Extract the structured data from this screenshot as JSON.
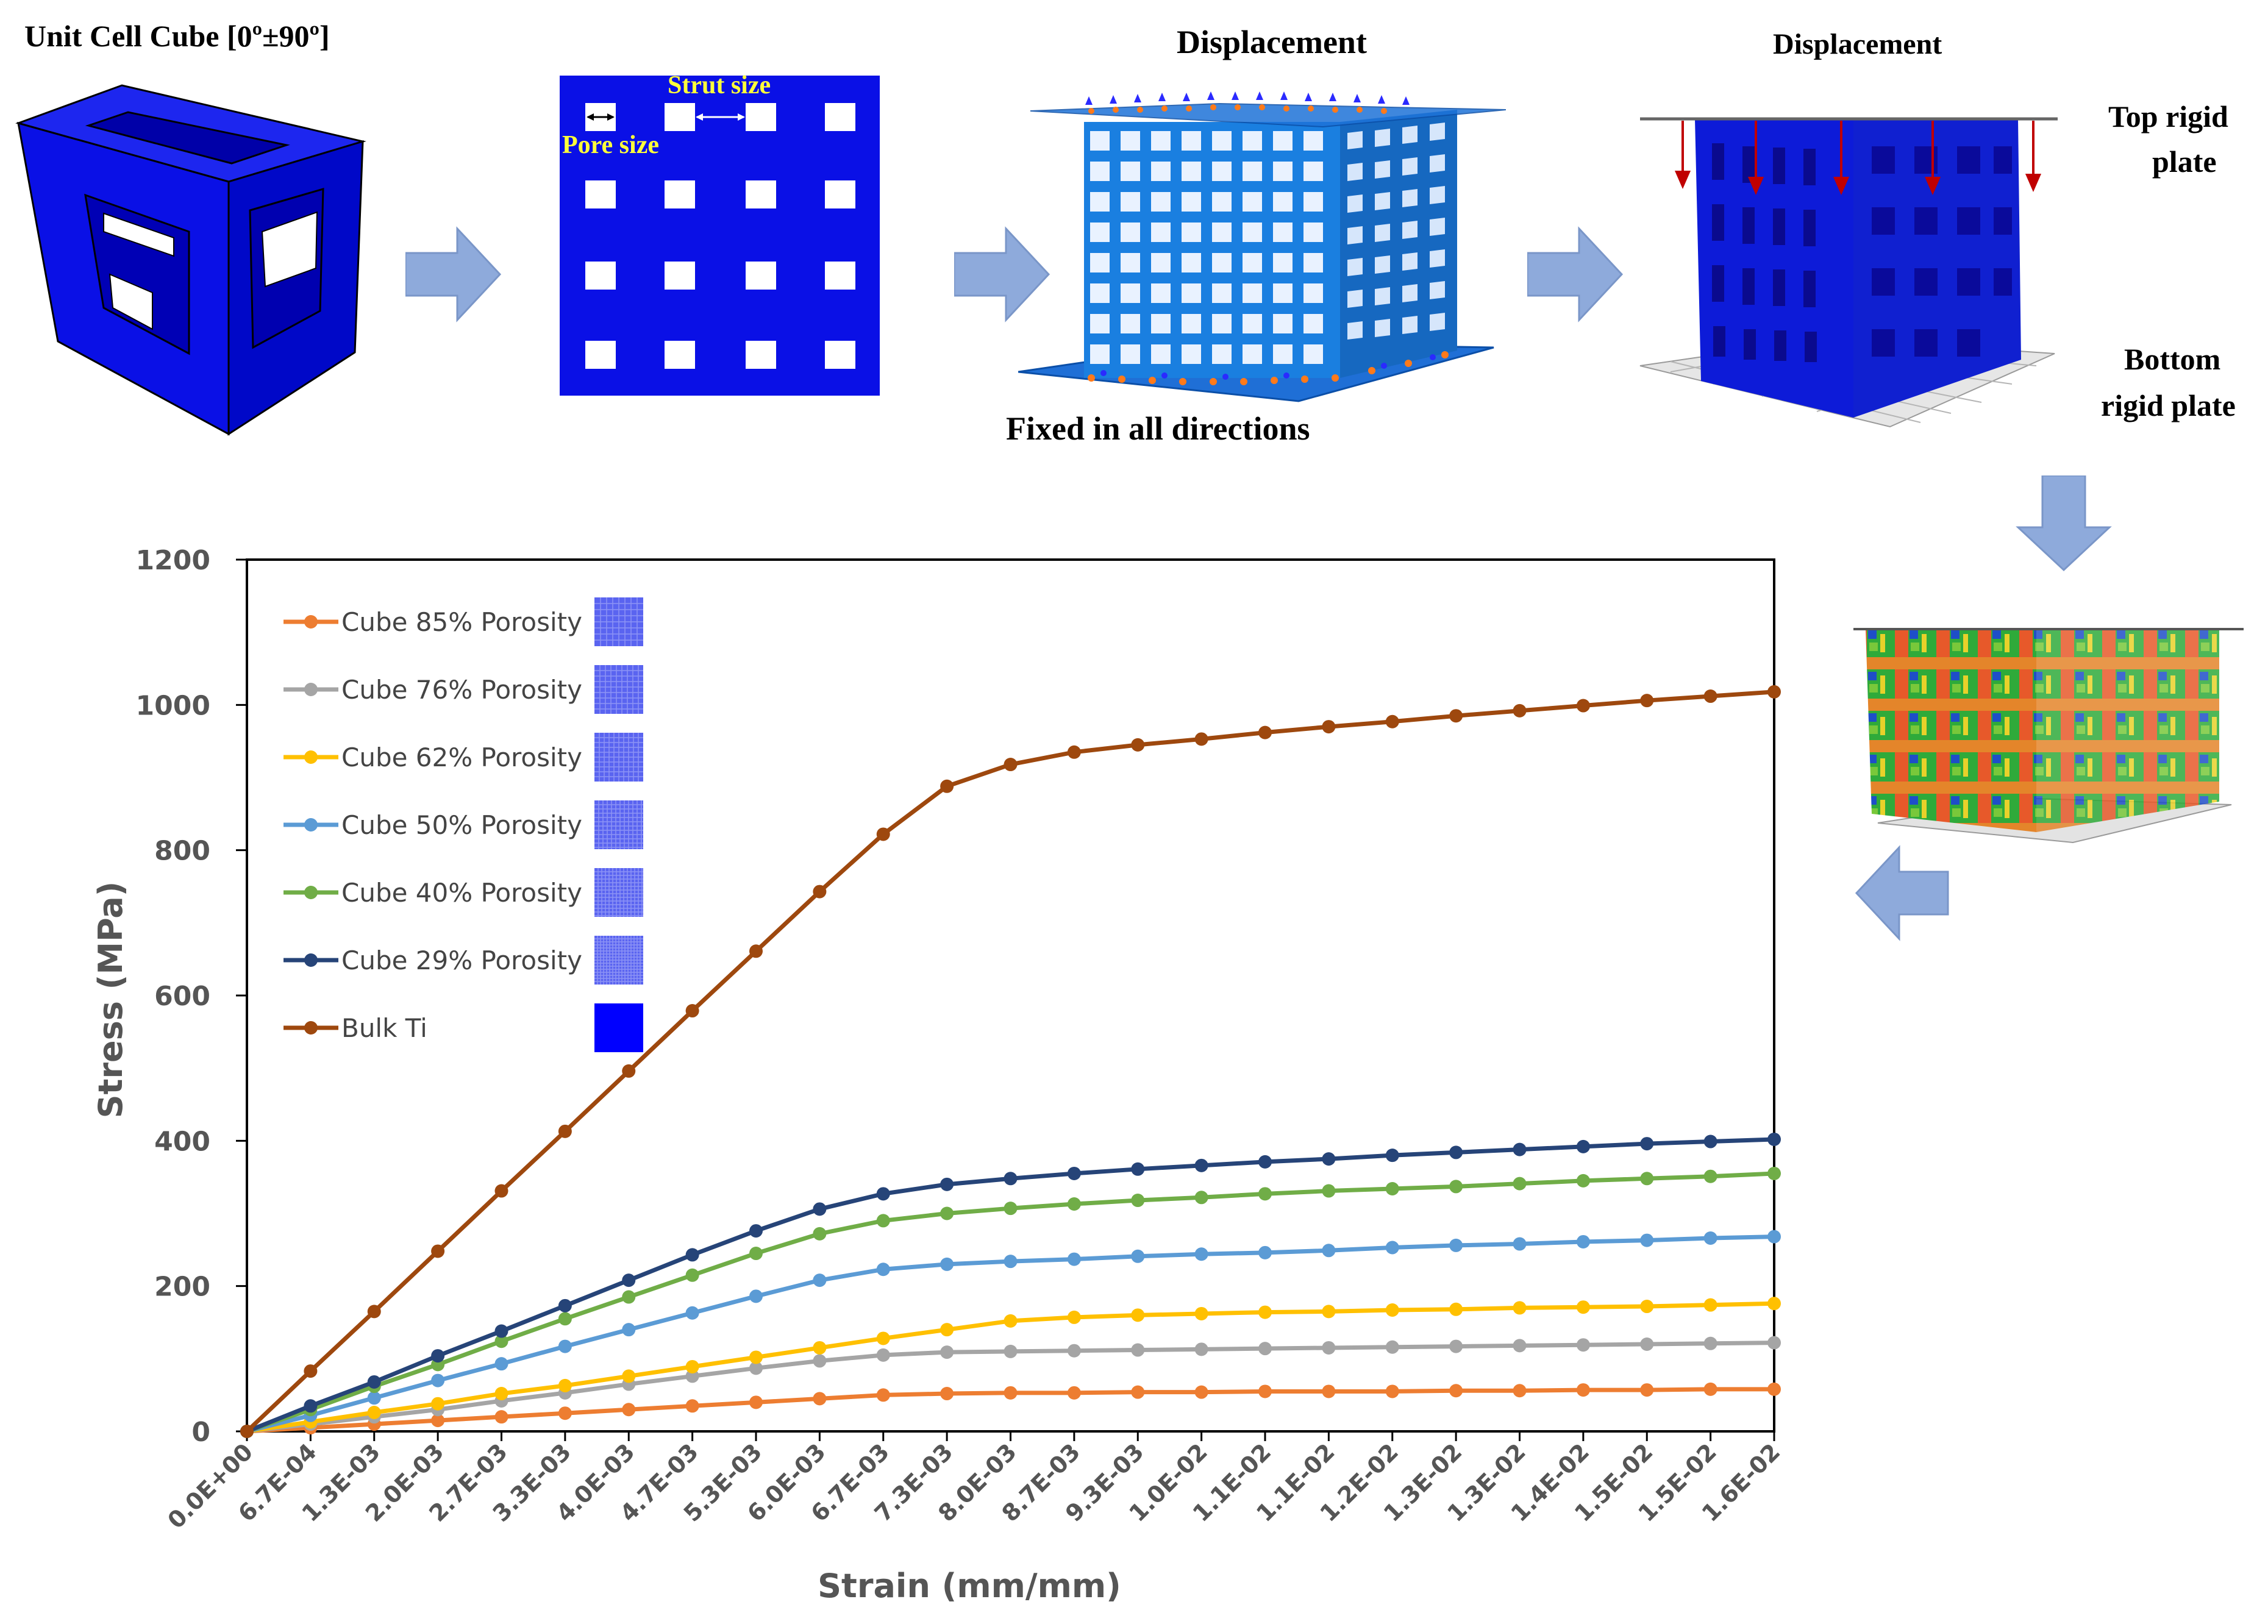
{
  "panel_labels": {
    "unit_cell": "Unit Cell Cube [0º±90º]",
    "strut_size": "Strut size",
    "pore_size": "Pore size",
    "displacement_1": "Displacement",
    "fixed": "Fixed in all directions",
    "displacement_2": "Displacement",
    "top_plate_l1": "Top rigid",
    "top_plate_l2": "plate",
    "bottom_plate_l1": "Bottom",
    "bottom_plate_l2": "rigid plate"
  },
  "colors": {
    "cube_blue": "#0A10E6",
    "arrow_blue": "#8EAADB",
    "series_85": "#ED7D31",
    "series_76": "#A5A5A5",
    "series_62": "#FFC000",
    "series_50": "#5B9BD5",
    "series_40": "#70AD47",
    "series_29": "#264478",
    "series_bulk": "#9E480E"
  },
  "chart_data": {
    "type": "line",
    "title": "",
    "xlabel": "Strain (mm/mm)",
    "ylabel": "Stress (MPa)",
    "ylim": [
      0,
      1200
    ],
    "yticks": [
      "0",
      "200",
      "400",
      "600",
      "800",
      "1000",
      "1200"
    ],
    "categories": [
      "0.0E+00",
      "6.7E-04",
      "1.3E-03",
      "2.0E-03",
      "2.7E-03",
      "3.3E-03",
      "4.0E-03",
      "4.7E-03",
      "5.3E-03",
      "6.0E-03",
      "6.7E-03",
      "7.3E-03",
      "8.0E-03",
      "8.7E-03",
      "9.3E-03",
      "1.0E-02",
      "1.1E-02",
      "1.1E-02",
      "1.2E-02",
      "1.3E-02",
      "1.3E-02",
      "1.4E-02",
      "1.5E-02",
      "1.5E-02",
      "1.6E-02"
    ],
    "series": [
      {
        "name": "Cube 85%  Porosity",
        "color": "#ED7D31",
        "values": [
          0,
          5,
          10,
          15,
          20,
          25,
          30,
          35,
          40,
          45,
          50,
          52,
          53,
          53,
          54,
          54,
          55,
          55,
          55,
          56,
          56,
          57,
          57,
          58,
          58
        ]
      },
      {
        "name": "Cube 76%  Porosity",
        "color": "#A5A5A5",
        "values": [
          0,
          10,
          20,
          30,
          42,
          53,
          65,
          76,
          87,
          97,
          105,
          109,
          110,
          111,
          112,
          113,
          114,
          115,
          116,
          117,
          118,
          119,
          120,
          121,
          122
        ]
      },
      {
        "name": "Cube 62%  Porosity",
        "color": "#FFC000",
        "values": [
          0,
          13,
          26,
          38,
          52,
          63,
          76,
          89,
          102,
          115,
          128,
          140,
          152,
          157,
          160,
          162,
          164,
          165,
          167,
          168,
          170,
          171,
          172,
          174,
          176
        ]
      },
      {
        "name": "Cube 50%  Porosity",
        "color": "#5B9BD5",
        "values": [
          0,
          22,
          46,
          70,
          93,
          117,
          140,
          163,
          186,
          208,
          223,
          230,
          234,
          237,
          241,
          244,
          246,
          249,
          253,
          256,
          258,
          261,
          263,
          266,
          268
        ]
      },
      {
        "name": "Cube 40%  Porosity",
        "color": "#70AD47",
        "values": [
          0,
          30,
          62,
          92,
          124,
          155,
          185,
          215,
          245,
          272,
          290,
          300,
          307,
          313,
          318,
          322,
          327,
          331,
          334,
          337,
          341,
          345,
          348,
          351,
          355
        ]
      },
      {
        "name": "Cube 29%  Porosity",
        "color": "#264478",
        "values": [
          0,
          35,
          68,
          104,
          138,
          173,
          208,
          243,
          276,
          306,
          327,
          340,
          348,
          355,
          361,
          366,
          371,
          375,
          380,
          384,
          388,
          392,
          396,
          399,
          402
        ]
      },
      {
        "name": "Bulk Ti",
        "color": "#9E480E",
        "values": [
          0,
          83,
          165,
          248,
          331,
          413,
          496,
          579,
          661,
          743,
          822,
          888,
          918,
          935,
          945,
          953,
          962,
          970,
          977,
          985,
          992,
          999,
          1006,
          1012,
          1018
        ]
      }
    ]
  }
}
